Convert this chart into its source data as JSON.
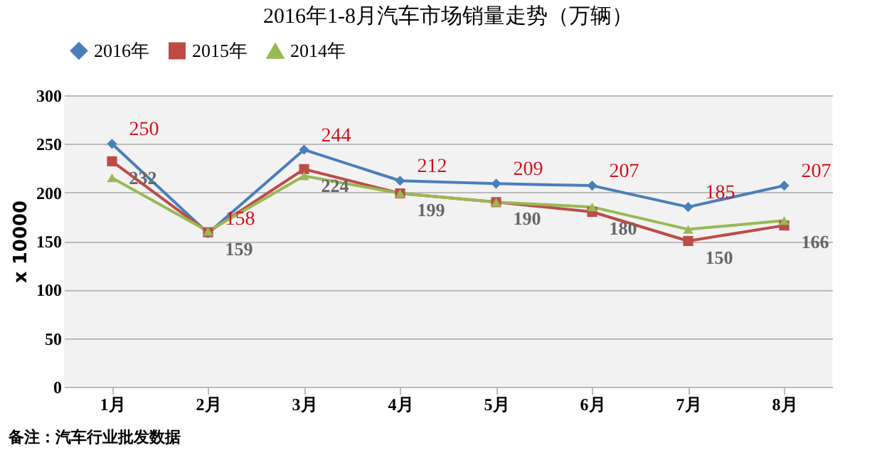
{
  "chart_data": {
    "type": "line",
    "title": "2016年1-8月汽车市场销量走势（万辆）",
    "ylabel": "x 10000",
    "annotations": [
      "备注：汽车行业批发数据"
    ],
    "categories": [
      "1月",
      "2月",
      "3月",
      "4月",
      "5月",
      "6月",
      "7月",
      "8月"
    ],
    "series": [
      {
        "name": "2016年",
        "color": "#4a7ebb",
        "marker": "diamond",
        "values": [
          250,
          158,
          244,
          212,
          209,
          207,
          185,
          207
        ],
        "value_labels": [
          "250",
          "158",
          "244",
          "212",
          "209",
          "207",
          "185",
          "207"
        ]
      },
      {
        "name": "2015年",
        "color": "#be4b48",
        "marker": "square",
        "values": [
          232,
          159,
          224,
          199,
          190,
          180,
          150,
          166
        ],
        "value_labels": [
          "232",
          "159",
          "224",
          "199",
          "190",
          "180",
          "150",
          "166"
        ]
      },
      {
        "name": "2014年",
        "color": "#98b954",
        "marker": "triangle",
        "values": [
          215,
          160,
          217,
          199,
          190,
          185,
          162,
          171
        ]
      }
    ],
    "ylim": [
      0,
      300
    ],
    "yticks": [
      0,
      50,
      100,
      150,
      200,
      250,
      300
    ],
    "grid": "y",
    "legend": "top",
    "line_style": "solid"
  }
}
